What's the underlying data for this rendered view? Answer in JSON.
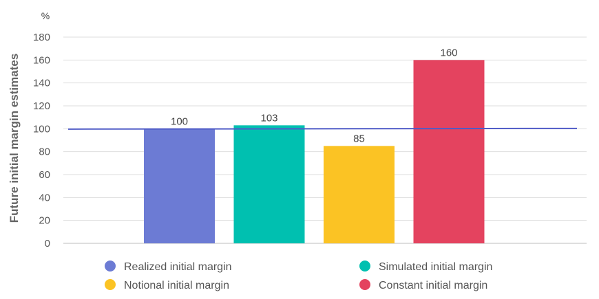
{
  "chart_data": {
    "type": "bar",
    "categories": [
      "Realized initial margin",
      "Simulated initial margin",
      "Notional initial margin",
      "Constant initial margin"
    ],
    "values": [
      100,
      103,
      85,
      160
    ],
    "colors": [
      "#6C7BD4",
      "#00C0B0",
      "#FBC324",
      "#E4435F"
    ],
    "value_labels": [
      "100",
      "103",
      "85",
      "160"
    ],
    "reference_line": {
      "value": 100,
      "color": "#4F5BC7"
    },
    "title": "",
    "xlabel": "",
    "ylabel": "Future initial margin estimates",
    "unit": "%",
    "ylim": [
      0,
      180
    ],
    "yticks": [
      0,
      20,
      40,
      60,
      80,
      100,
      120,
      140,
      160,
      180
    ],
    "grid": true,
    "legend": {
      "placement": "bottom",
      "items": [
        {
          "label": "Realized initial margin",
          "color": "#6C7BD4"
        },
        {
          "label": "Simulated initial margin",
          "color": "#00C0B0"
        },
        {
          "label": "Notional initial margin",
          "color": "#FBC324"
        },
        {
          "label": "Constant initial margin",
          "color": "#E4435F"
        }
      ]
    }
  }
}
